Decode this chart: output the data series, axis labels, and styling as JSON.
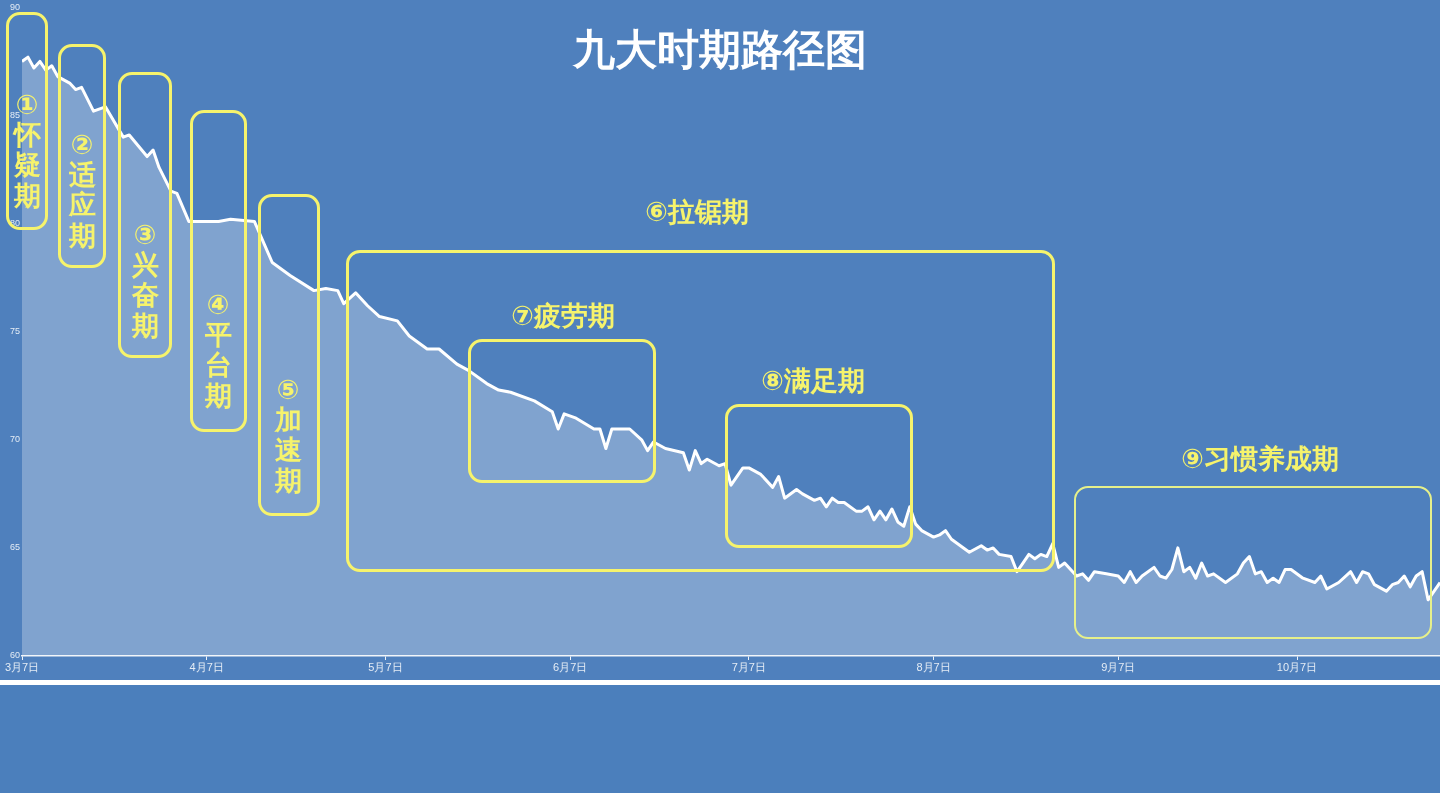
{
  "chart_data": {
    "type": "area",
    "title": "九大时期路径图",
    "x": [
      "--03-07",
      "--03-08",
      "--03-09",
      "--03-10",
      "--03-11",
      "--03-12",
      "--03-13",
      "--03-15",
      "--03-16",
      "--03-17",
      "--03-19",
      "--03-21",
      "--03-24",
      "--03-25",
      "--03-28",
      "--03-29",
      "--03-30",
      "--04-01",
      "--04-02",
      "--04-04",
      "--04-06",
      "--04-09",
      "--04-11",
      "--04-15",
      "--04-18",
      "--04-21",
      "--04-25",
      "--04-27",
      "--04-29",
      "--04-30",
      "--05-02",
      "--05-04",
      "--05-06",
      "--05-09",
      "--05-11",
      "--05-14",
      "--05-16",
      "--05-19",
      "--05-21",
      "--05-24",
      "--05-26",
      "--05-28",
      "--06-01",
      "--06-04",
      "--06-05",
      "--06-06",
      "--06-08",
      "--06-11",
      "--06-12",
      "--06-13",
      "--06-14",
      "--06-17",
      "--06-19",
      "--06-20",
      "--06-21",
      "--06-23",
      "--06-26",
      "--06-27",
      "--06-28",
      "--06-29",
      "--06-30",
      "--07-02",
      "--07-03",
      "--07-04",
      "--07-06",
      "--07-07",
      "--07-09",
      "--07-11",
      "--07-12",
      "--07-13",
      "--07-15",
      "--07-16",
      "--07-18",
      "--07-19",
      "--07-20",
      "--07-21",
      "--07-22",
      "--07-23",
      "--07-25",
      "--07-26",
      "--07-27",
      "--07-28",
      "--07-29",
      "--07-30",
      "--07-31",
      "--08-01",
      "--08-02",
      "--08-03",
      "--08-04",
      "--08-05",
      "--08-07",
      "--08-08",
      "--08-09",
      "--08-10",
      "--08-13",
      "--08-15",
      "--08-16",
      "--08-17",
      "--08-18",
      "--08-20",
      "--08-21",
      "--08-22",
      "--08-23",
      "--08-24",
      "--08-25",
      "--08-26",
      "--08-27",
      "--08-28",
      "--08-29",
      "--08-31",
      "--09-01",
      "--09-02",
      "--09-03",
      "--09-05",
      "--09-07",
      "--09-08",
      "--09-09",
      "--09-10",
      "--09-11",
      "--09-13",
      "--09-14",
      "--09-15",
      "--09-16",
      "--09-17",
      "--09-18",
      "--09-19",
      "--09-20",
      "--09-21",
      "--09-22",
      "--09-23",
      "--09-25",
      "--09-27",
      "--09-28",
      "--09-29",
      "--09-30",
      "--10-01",
      "--10-02",
      "--10-03",
      "--10-04",
      "--10-05",
      "--10-06",
      "--10-08",
      "--10-10",
      "--10-11",
      "--10-12",
      "--10-14",
      "--10-16",
      "--10-17",
      "--10-18",
      "--10-19",
      "--10-20",
      "--10-22",
      "--10-23",
      "--10-24",
      "--10-25",
      "--10-26",
      "--10-27",
      "--10-28",
      "--10-29",
      "--10-31"
    ],
    "series": [
      {
        "color": "#ffffff",
        "values": [
          87.5,
          87.7,
          87.2,
          87.5,
          87.1,
          87.3,
          86.8,
          86.5,
          86.2,
          86.3,
          85.2,
          85.4,
          84.0,
          84.1,
          83.1,
          83.4,
          82.6,
          81.5,
          81.4,
          80.1,
          80.1,
          80.1,
          80.2,
          80.1,
          78.2,
          77.6,
          76.9,
          77.0,
          76.9,
          76.3,
          76.8,
          76.2,
          75.7,
          75.5,
          74.8,
          74.2,
          74.2,
          73.5,
          73.2,
          72.6,
          72.3,
          72.2,
          71.8,
          71.3,
          70.5,
          71.2,
          71.0,
          70.5,
          70.5,
          69.6,
          70.5,
          70.5,
          70.0,
          69.5,
          69.9,
          69.6,
          69.4,
          68.6,
          69.5,
          68.9,
          69.1,
          68.8,
          68.9,
          67.9,
          68.7,
          68.7,
          68.4,
          67.8,
          68.3,
          67.3,
          67.7,
          67.5,
          67.2,
          67.3,
          66.9,
          67.3,
          67.1,
          67.1,
          66.7,
          66.7,
          66.9,
          66.3,
          66.7,
          66.3,
          66.8,
          66.2,
          66.0,
          66.9,
          66.1,
          65.8,
          65.5,
          65.6,
          65.8,
          65.4,
          64.8,
          65.1,
          64.9,
          65.0,
          64.7,
          64.6,
          63.9,
          64.3,
          64.7,
          64.5,
          64.7,
          64.6,
          65.2,
          64.1,
          64.3,
          63.7,
          63.8,
          63.5,
          63.9,
          63.8,
          63.7,
          63.4,
          63.9,
          63.4,
          63.7,
          64.1,
          63.7,
          63.6,
          64.0,
          65.0,
          63.9,
          64.1,
          63.6,
          64.3,
          63.7,
          63.8,
          63.4,
          63.8,
          64.3,
          64.6,
          63.8,
          63.9,
          63.4,
          63.6,
          63.4,
          64.0,
          64.0,
          63.6,
          63.4,
          63.7,
          63.1,
          63.4,
          63.9,
          63.4,
          63.9,
          63.8,
          63.3,
          63.0,
          63.3,
          63.4,
          63.7,
          63.2,
          63.7,
          63.9,
          62.6,
          63.4
        ]
      }
    ],
    "xlim": [
      "--03-07",
      "--10-31"
    ],
    "xticks": [
      {
        "value": "--03-07",
        "label": "3月7日"
      },
      {
        "value": "--04-07",
        "label": "4月7日"
      },
      {
        "value": "--05-07",
        "label": "5月7日"
      },
      {
        "value": "--06-07",
        "label": "6月7日"
      },
      {
        "value": "--07-07",
        "label": "7月7日"
      },
      {
        "value": "--08-07",
        "label": "8月7日"
      },
      {
        "value": "--09-07",
        "label": "9月7日"
      },
      {
        "value": "--10-07",
        "label": "10月7日"
      }
    ],
    "ylim": [
      60,
      90
    ],
    "yticks": [
      60,
      65,
      70,
      75,
      80,
      85,
      90
    ],
    "annotations": [
      "①怀疑期",
      "②适应期",
      "③兴奋期",
      "④平台期",
      "⑤加速期",
      "⑥拉锯期",
      "⑦疲劳期",
      "⑧满足期",
      "⑨习惯养成期"
    ],
    "legend": false
  }
}
